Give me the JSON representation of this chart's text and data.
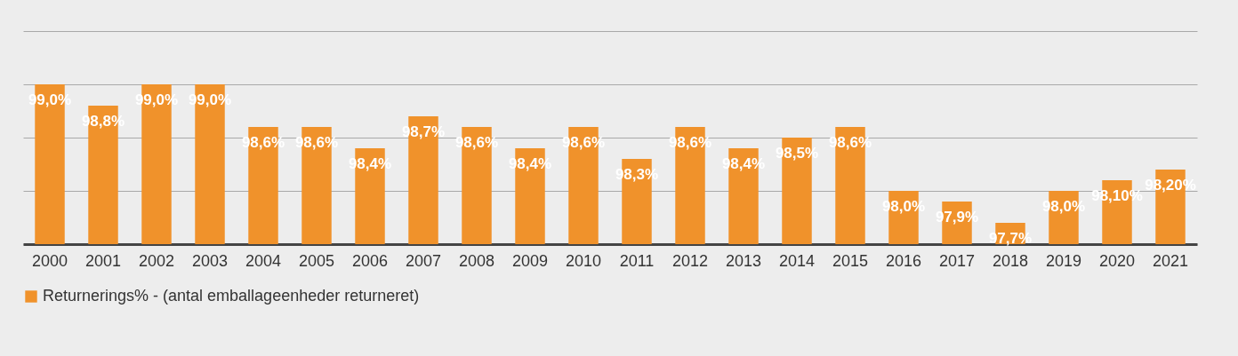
{
  "chart_data": {
    "type": "bar",
    "categories": [
      "2000",
      "2001",
      "2002",
      "2003",
      "2004",
      "2005",
      "2006",
      "2007",
      "2008",
      "2009",
      "2010",
      "2011",
      "2012",
      "2013",
      "2014",
      "2015",
      "2016",
      "2017",
      "2018",
      "2019",
      "2020",
      "2021"
    ],
    "series": [
      {
        "name": "Returnerings% - (antal emballageenheder returneret)",
        "color": "#f0922b",
        "values": [
          99.0,
          98.8,
          99.0,
          99.0,
          98.6,
          98.6,
          98.4,
          98.7,
          98.6,
          98.4,
          98.6,
          98.3,
          98.6,
          98.4,
          98.5,
          98.6,
          98.0,
          97.9,
          97.7,
          98.0,
          98.1,
          98.2
        ],
        "value_labels": [
          "99,0%",
          "98,8%",
          "99,0%",
          "99,0%",
          "98,6%",
          "98,6%",
          "98,4%",
          "98,7%",
          "98,6%",
          "98,4%",
          "98,6%",
          "98,3%",
          "98,6%",
          "98,4%",
          "98,5%",
          "98,6%",
          "98,0%",
          "97,9%",
          "97,7%",
          "98,0%",
          "98,10%",
          "98,20%"
        ]
      }
    ],
    "ylim": [
      97.5,
      99.5
    ],
    "yticks": [
      {
        "value": 97.5,
        "label": null
      },
      {
        "value": 98.0,
        "label": null
      },
      {
        "value": 98.5,
        "label": null
      },
      {
        "value": 99.0,
        "label": null
      },
      {
        "value": 99.5,
        "label": null
      }
    ],
    "grid": "y",
    "legend": "bottom"
  }
}
